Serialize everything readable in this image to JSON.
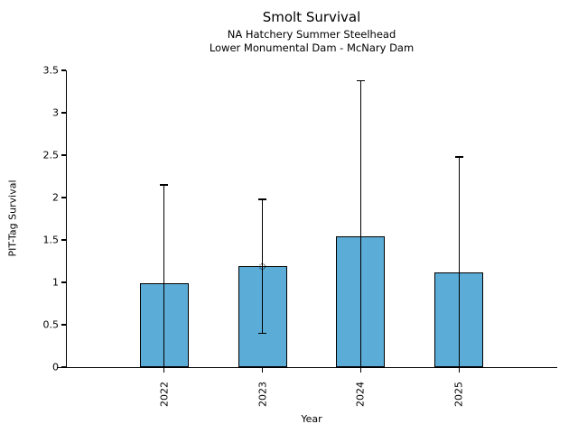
{
  "chart_data": {
    "type": "bar",
    "title": "Smolt Survival",
    "subtitle": [
      "NA Hatchery Summer Steelhead",
      "Lower Monumental Dam - McNary Dam"
    ],
    "xlabel": "Year",
    "ylabel": "PIT-Tag Survival",
    "categories": [
      "2022",
      "2023",
      "2024",
      "2025"
    ],
    "values": [
      0.99,
      1.19,
      1.54,
      1.12
    ],
    "error_upper": [
      2.15,
      1.98,
      3.38,
      2.48
    ],
    "error_lower": [
      0,
      0.4,
      0,
      0
    ],
    "point_marker": {
      "category": "2023",
      "value": 1.19,
      "style": "open-circle-dotted"
    },
    "ylim": [
      0,
      3.5
    ],
    "yticks": [
      "0",
      "0.5",
      "1",
      "1.5",
      "2",
      "2.5",
      "3",
      "3.5"
    ],
    "grid": false,
    "legend": false,
    "bar_color": "#5BACD6",
    "bar_edge_color": "#000000",
    "axis_color": "#000000",
    "background": "#FFFFFF"
  }
}
